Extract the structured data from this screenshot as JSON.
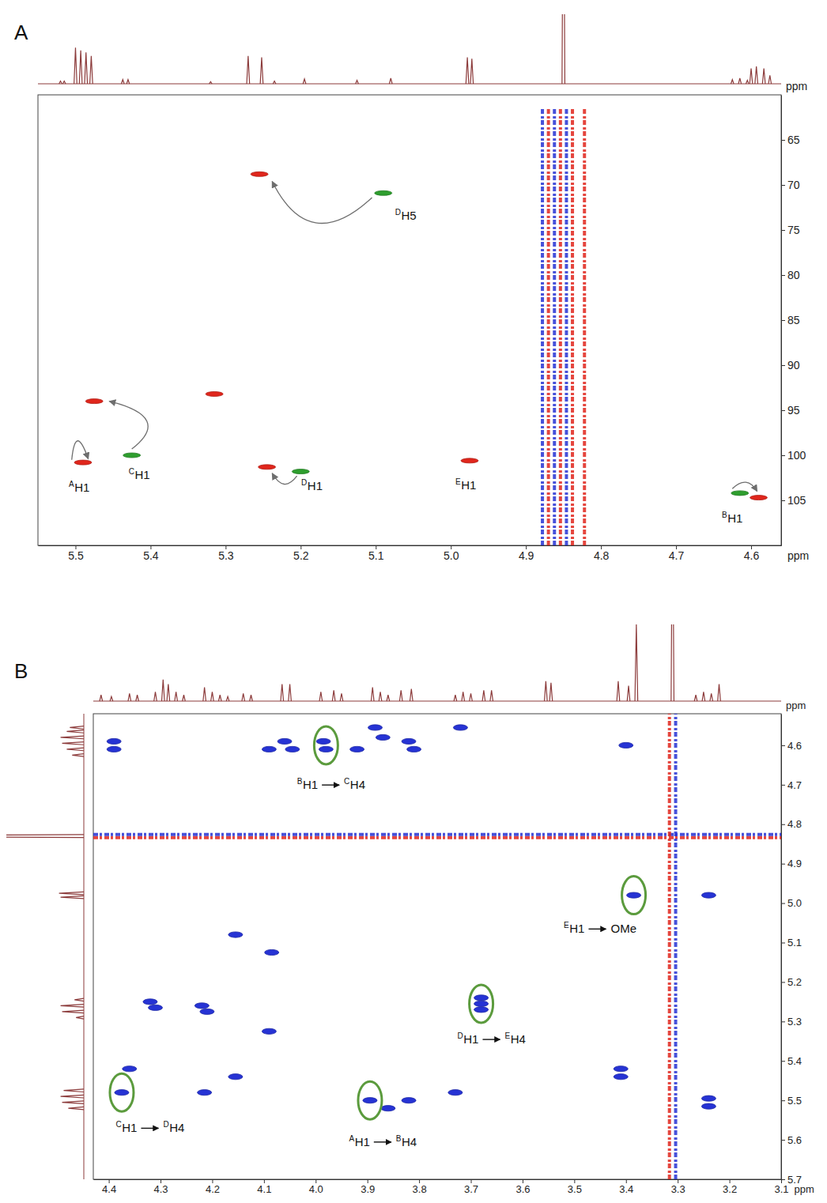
{
  "chart_data": [
    {
      "type": "scatter",
      "title": "A",
      "xlabel": "ppm",
      "ylabel": "ppm",
      "xlim": [
        5.55,
        4.56
      ],
      "xticks": [
        5.5,
        5.4,
        5.3,
        5.2,
        5.1,
        {
          "value": 5,
          "label": "5.0"
        },
        4.9,
        4.8,
        4.7,
        4.6
      ],
      "ylim": [
        110,
        60
      ],
      "yticks": [
        65,
        70,
        75,
        80,
        85,
        90,
        95,
        100,
        105
      ],
      "series": [
        {
          "type": "scatter",
          "marker": "ellipse",
          "color": "#e0261c",
          "x": [
            5.49,
            5.475,
            5.245,
            5.255,
            4.975,
            4.59,
            5.315
          ],
          "values": [
            100.8,
            94.0,
            101.3,
            68.8,
            100.6,
            104.7,
            93.2
          ]
        },
        {
          "type": "scatter",
          "marker": "ellipse",
          "color": "#2e9e2e",
          "x": [
            5.425,
            5.2,
            5.09,
            4.615
          ],
          "values": [
            100.0,
            101.8,
            70.9,
            104.2
          ]
        },
        {
          "type": "line",
          "line_style": "dashed",
          "color": "#2633d4",
          "x": [
            4.878,
            4.878
          ],
          "values": [
            110,
            61.5
          ]
        },
        {
          "type": "line",
          "line_style": "dashed",
          "color": "#e0261c",
          "x": [
            4.87,
            4.87
          ],
          "values": [
            110,
            61.5
          ]
        },
        {
          "type": "line",
          "line_style": "dashed",
          "color": "#2633d4",
          "x": [
            4.862,
            4.862
          ],
          "values": [
            110,
            61.5
          ]
        },
        {
          "type": "line",
          "line_style": "dashed",
          "color": "#e0261c",
          "x": [
            4.854,
            4.854
          ],
          "values": [
            110,
            61.5
          ]
        },
        {
          "type": "line",
          "line_style": "dashed",
          "color": "#2633d4",
          "x": [
            4.846,
            4.846
          ],
          "values": [
            110,
            61.5
          ]
        },
        {
          "type": "line",
          "line_style": "dashed",
          "color": "#e0261c",
          "x": [
            4.838,
            4.838
          ],
          "values": [
            110,
            61.5
          ]
        },
        {
          "type": "line",
          "line_style": "dashed",
          "color": "#e0261c",
          "x": [
            4.822,
            4.822
          ],
          "values": [
            110,
            61.5
          ]
        }
      ],
      "top_spectrum": {
        "color": "#8c3b3b",
        "ylim": [
          0,
          100
        ],
        "shift": [
          5.52,
          5.515,
          5.5,
          5.493,
          5.486,
          5.479,
          5.437,
          5.43,
          5.32,
          5.27,
          5.252,
          5.235,
          5.195,
          5.125,
          5.08,
          4.978,
          4.972,
          4.85,
          4.625,
          4.615,
          4.605,
          4.6,
          4.593,
          4.583,
          4.575
        ],
        "values": [
          4,
          4,
          52,
          48,
          45,
          40,
          6,
          6,
          3,
          40,
          38,
          4,
          7,
          5,
          8,
          38,
          36,
          400,
          6,
          8,
          5,
          22,
          25,
          22,
          12
        ]
      },
      "arrows": [
        {
          "from": [
            5.505,
            100.5
          ],
          "via": [
            5.497,
            98.4
          ],
          "to": [
            5.483,
            100.4
          ]
        },
        {
          "from": [
            5.425,
            99.3
          ],
          "via": [
            5.405,
            96.2
          ],
          "to": [
            5.455,
            94.0
          ]
        },
        {
          "from": [
            5.205,
            102.3
          ],
          "via": [
            5.222,
            103.2
          ],
          "to": [
            5.238,
            102.0
          ]
        },
        {
          "from": [
            5.105,
            71.4
          ],
          "via": [
            5.18,
            74.2
          ],
          "to": [
            5.238,
            69.6
          ]
        },
        {
          "from": [
            4.625,
            103.7
          ],
          "via": [
            4.607,
            103.0
          ],
          "to": [
            4.592,
            104.0
          ]
        }
      ],
      "annotations": [
        {
          "parts": [
            {
              "sup": "A",
              "text": "H1"
            }
          ],
          "x": 5.495,
          "y": 103.6
        },
        {
          "parts": [
            {
              "sup": "C",
              "text": "H1"
            }
          ],
          "x": 5.415,
          "y": 102.2
        },
        {
          "parts": [
            {
              "sup": "D",
              "text": "H1"
            }
          ],
          "x": 5.185,
          "y": 103.4
        },
        {
          "parts": [
            {
              "sup": "D",
              "text": "H5"
            }
          ],
          "x": 5.06,
          "y": 73.4
        },
        {
          "parts": [
            {
              "sup": "E",
              "text": "H1"
            }
          ],
          "x": 4.98,
          "y": 103.3
        },
        {
          "parts": [
            {
              "sup": "B",
              "text": "H1"
            }
          ],
          "x": 4.625,
          "y": 107.0
        }
      ]
    },
    {
      "type": "scatter",
      "title": "B",
      "xlabel": "ppm",
      "ylabel": "ppm",
      "xlim": [
        4.43,
        3.1
      ],
      "xticks": [
        4.4,
        4.3,
        4.2,
        4.1,
        {
          "value": 4,
          "label": "4.0"
        },
        3.9,
        3.8,
        3.7,
        3.6,
        3.5,
        3.4,
        3.3,
        3.2,
        3.1
      ],
      "ylim": [
        5.7,
        4.52
      ],
      "yticks": [
        4.6,
        4.7,
        4.8,
        4.9,
        {
          "value": 5,
          "label": "5.0"
        },
        5.1,
        5.2,
        5.3,
        5.4,
        5.5,
        5.6,
        5.7
      ],
      "series": [
        {
          "type": "scatter",
          "marker": "ellipse",
          "color": "#2633d4",
          "x": [
            4.39,
            4.39,
            4.09,
            4.06,
            4.045,
            3.985,
            3.98,
            3.92,
            3.885,
            3.87,
            3.82,
            3.81,
            3.72,
            3.4,
            3.385,
            3.24,
            4.155,
            4.085,
            4.32,
            4.31,
            4.22,
            4.21,
            3.68,
            3.68,
            3.68,
            4.09,
            4.36,
            4.155,
            3.41,
            3.41,
            4.375,
            4.215,
            3.895,
            3.86,
            3.82,
            3.73,
            3.24,
            3.24
          ],
          "values": [
            4.59,
            4.61,
            4.61,
            4.59,
            4.61,
            4.59,
            4.61,
            4.61,
            4.555,
            4.58,
            4.59,
            4.61,
            4.555,
            4.6,
            4.98,
            4.98,
            5.08,
            5.125,
            5.25,
            5.265,
            5.26,
            5.275,
            5.24,
            5.255,
            5.27,
            5.325,
            5.42,
            5.44,
            5.42,
            5.44,
            5.48,
            5.48,
            5.5,
            5.52,
            5.5,
            5.48,
            5.495,
            5.515
          ]
        },
        {
          "type": "line",
          "line_style": "dashed",
          "color": "#e0261c",
          "x": [
            4.43,
            3.1
          ],
          "values": [
            4.834,
            4.834
          ]
        },
        {
          "type": "line",
          "line_style": "dashed",
          "color": "#2633d4",
          "x": [
            4.43,
            3.1
          ],
          "values": [
            4.826,
            4.826
          ]
        },
        {
          "type": "line",
          "line_style": "dashed",
          "color": "#e0261c",
          "x": [
            3.316,
            3.316
          ],
          "values": [
            5.7,
            4.52
          ]
        },
        {
          "type": "line",
          "line_style": "dashed",
          "color": "#2633d4",
          "x": [
            3.304,
            3.304
          ],
          "values": [
            5.7,
            4.52
          ]
        }
      ],
      "top_spectrum": {
        "color": "#8c3b3b",
        "ylim": [
          0,
          100
        ],
        "shift": [
          4.415,
          4.395,
          4.36,
          4.345,
          4.31,
          4.295,
          4.285,
          4.27,
          4.255,
          4.215,
          4.2,
          4.185,
          4.17,
          4.14,
          4.125,
          4.065,
          4.05,
          3.99,
          3.965,
          3.95,
          3.89,
          3.875,
          3.86,
          3.835,
          3.815,
          3.73,
          3.715,
          3.7,
          3.675,
          3.66,
          3.555,
          3.545,
          3.415,
          3.395,
          3.38,
          3.31,
          3.265,
          3.25,
          3.235,
          3.22
        ],
        "values": [
          8,
          6,
          10,
          8,
          12,
          28,
          22,
          12,
          8,
          18,
          12,
          8,
          6,
          10,
          8,
          22,
          22,
          12,
          14,
          10,
          18,
          12,
          8,
          14,
          16,
          8,
          12,
          10,
          14,
          14,
          26,
          24,
          26,
          20,
          100,
          300,
          8,
          12,
          10,
          22
        ]
      },
      "left_spectrum": {
        "color": "#8c3b3b",
        "ylim": [
          0,
          100
        ],
        "shift": [
          4.555,
          4.565,
          4.58,
          4.595,
          4.61,
          4.625,
          4.83,
          4.975,
          4.985,
          5.245,
          5.26,
          5.275,
          5.29,
          5.475,
          5.49,
          5.505,
          5.52
        ],
        "values": [
          18,
          22,
          30,
          28,
          22,
          15,
          400,
          32,
          30,
          12,
          30,
          28,
          10,
          26,
          30,
          28,
          20
        ]
      },
      "annotations": [
        {
          "parts": [
            {
              "sup": "B",
              "text": "H1"
            },
            {
              "sup": "C",
              "text": "H4"
            }
          ],
          "x": 3.97,
          "y": 4.7,
          "circle": [
            3.98,
            4.6
          ]
        },
        {
          "parts": [
            {
              "sup": "E",
              "text": "H1"
            },
            {
              "text": "OMe"
            }
          ],
          "x": 3.45,
          "y": 5.065,
          "circle": [
            3.385,
            4.98
          ]
        },
        {
          "parts": [
            {
              "sup": "D",
              "text": "H1"
            },
            {
              "sup": "E",
              "text": "H4"
            }
          ],
          "x": 3.66,
          "y": 5.345,
          "circle": [
            3.68,
            5.255
          ]
        },
        {
          "parts": [
            {
              "sup": "C",
              "text": "H1"
            },
            {
              "sup": "D",
              "text": "H4"
            }
          ],
          "x": 4.32,
          "y": 5.57,
          "circle": [
            4.375,
            5.48
          ]
        },
        {
          "parts": [
            {
              "sup": "A",
              "text": "H1"
            },
            {
              "sup": "B",
              "text": "H4"
            }
          ],
          "x": 3.87,
          "y": 5.605,
          "circle": [
            3.895,
            5.5
          ]
        }
      ]
    }
  ]
}
